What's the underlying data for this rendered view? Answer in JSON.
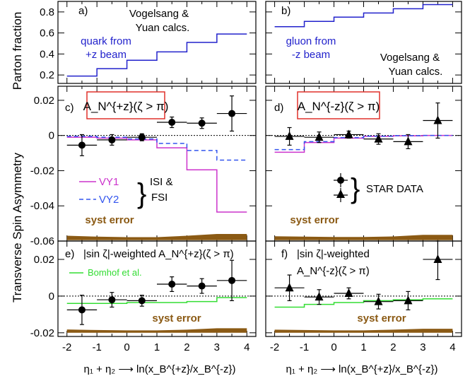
{
  "figure": {
    "ylabel_top": "Parton fraction",
    "ylabel_main": "Transverse Spin Asymmetry",
    "xlabel_left": "η₁ + η₂ ⟶ ln(x_B^{+z}/x_B^{-z})",
    "xlabel_right": "η₁ + η₂ ⟶ ln(x_B^{+z}/x_B^{-z})",
    "x_ticklabels": [
      "-2",
      "-1",
      "0",
      "1",
      "2",
      "3",
      "4"
    ]
  },
  "panels": {
    "a": {
      "tag": "a)",
      "text1": "Vogelsang &",
      "text2": "Yuan calcs.",
      "curve_label1": "quark from",
      "curve_label2": "+z beam"
    },
    "b": {
      "tag": "b)",
      "text1": "Vogelsang &",
      "text2": "Yuan calcs.",
      "curve_label1": "gluon from",
      "curve_label2": "-z beam"
    },
    "c": {
      "tag": "c)",
      "boxed_label": "A_N^{+z}(ζ > π)",
      "legend_vy1": "VY1",
      "legend_vy2": "VY2",
      "legend_isi1": "ISI &",
      "legend_isi2": "FSI",
      "syst_label": "syst error"
    },
    "d": {
      "tag": "d)",
      "boxed_label": "A_N^{-z}(ζ > π)",
      "star_data": "STAR  DATA",
      "syst_label": "syst error"
    },
    "e": {
      "tag": "e)",
      "title": "|sin ζ|-weighted A_N^{+z}(ζ > π)",
      "legend_bomhof": "Bomhof et al.",
      "syst_label": "syst error"
    },
    "f": {
      "tag": "f)",
      "title1": "|sin ζ|-weighted",
      "title2": "A_N^{-z}(ζ > π)",
      "syst_label": "syst error"
    }
  },
  "chart_data": [
    {
      "id": "a",
      "type": "line",
      "title": "",
      "xlim": [
        -2.3,
        4.3
      ],
      "ylim": [
        0.12,
        0.9
      ],
      "yticks": [
        0.2,
        0.4,
        0.6,
        0.8
      ],
      "yticklabels": [
        "0.2",
        "0.4",
        "0.6",
        "0.8"
      ],
      "series": [
        {
          "name": "quark from +z beam",
          "color": "#2222cc",
          "step_edges": [
            -2,
            -1,
            0,
            1,
            2,
            3,
            4
          ],
          "step_values": [
            0.19,
            0.26,
            0.34,
            0.42,
            0.51,
            0.59
          ]
        }
      ]
    },
    {
      "id": "b",
      "type": "line",
      "title": "",
      "xlim": [
        -2.3,
        4.3
      ],
      "ylim": [
        0.12,
        0.9
      ],
      "yticks": [
        0.2,
        0.4,
        0.6,
        0.8
      ],
      "yticklabels": [],
      "series": [
        {
          "name": "gluon from -z beam",
          "color": "#2222cc",
          "step_edges": [
            -2,
            -1,
            0,
            1,
            2,
            3,
            4
          ],
          "step_values": [
            0.66,
            0.71,
            0.75,
            0.79,
            0.83,
            0.87
          ]
        }
      ]
    },
    {
      "id": "c",
      "type": "scatter",
      "xlim": [
        -2.3,
        4.3
      ],
      "ylim": [
        -0.06,
        0.028
      ],
      "yticks": [
        -0.06,
        -0.04,
        -0.02,
        0,
        0.02
      ],
      "yticklabels": [
        "-0.06",
        "-0.04",
        "-0.02",
        "0",
        "0.02"
      ],
      "points": [
        {
          "x": -1.5,
          "y": -0.0055,
          "yerr": 0.006,
          "xerr": 0.5
        },
        {
          "x": -0.5,
          "y": -0.0025,
          "yerr": 0.003,
          "xerr": 0.5
        },
        {
          "x": 0.5,
          "y": -0.001,
          "yerr": 0.002,
          "xerr": 0.5
        },
        {
          "x": 1.5,
          "y": 0.0075,
          "yerr": 0.003,
          "xerr": 0.5
        },
        {
          "x": 2.5,
          "y": 0.007,
          "yerr": 0.003,
          "xerr": 0.5
        },
        {
          "x": 3.5,
          "y": 0.0125,
          "yerr": 0.01,
          "xerr": 0.5
        }
      ],
      "marker": "circle",
      "series": [
        {
          "name": "VY1",
          "color": "#cc33cc",
          "dash": "solid",
          "step_edges": [
            -2,
            -1,
            0,
            1,
            2,
            3,
            4
          ],
          "step_values": [
            -0.001,
            -0.0015,
            -0.0025,
            -0.007,
            -0.0195,
            -0.0435
          ]
        },
        {
          "name": "VY2",
          "color": "#3355ee",
          "dash": "dashed",
          "step_edges": [
            -2,
            -1,
            0,
            1,
            2,
            3,
            4
          ],
          "step_values": [
            -0.0005,
            -0.001,
            -0.002,
            -0.0045,
            -0.0085,
            -0.014
          ]
        }
      ],
      "syst_band": {
        "x": [
          -2,
          -1,
          0,
          1,
          2,
          3,
          4
        ],
        "low": [
          -0.0595,
          -0.0595,
          -0.0595,
          -0.0595,
          -0.0595,
          -0.0595,
          -0.0595
        ],
        "high": [
          -0.057,
          -0.0575,
          -0.0578,
          -0.0578,
          -0.057,
          -0.056,
          -0.056
        ]
      }
    },
    {
      "id": "d",
      "type": "scatter",
      "xlim": [
        -2.3,
        4.3
      ],
      "ylim": [
        -0.06,
        0.028
      ],
      "yticks": [
        -0.06,
        -0.04,
        -0.02,
        0,
        0.02
      ],
      "yticklabels": [],
      "points": [
        {
          "x": -1.5,
          "y": -0.0005,
          "yerr": 0.005,
          "xerr": 0.5
        },
        {
          "x": -0.5,
          "y": -0.001,
          "yerr": 0.003,
          "xerr": 0.5
        },
        {
          "x": 0.5,
          "y": 0.0005,
          "yerr": 0.002,
          "xerr": 0.5
        },
        {
          "x": 1.5,
          "y": -0.002,
          "yerr": 0.003,
          "xerr": 0.5
        },
        {
          "x": 2.5,
          "y": -0.0035,
          "yerr": 0.004,
          "xerr": 0.5
        },
        {
          "x": 3.5,
          "y": 0.0085,
          "yerr": 0.01,
          "xerr": 0.5
        }
      ],
      "marker": "triangle",
      "series": [
        {
          "name": "VY1",
          "color": "#cc33cc",
          "dash": "solid",
          "step_edges": [
            -2,
            -1,
            0,
            1,
            2,
            3,
            4
          ],
          "step_values": [
            -0.0095,
            -0.004,
            -0.0015,
            -0.0005,
            -0.0002,
            0.0
          ]
        },
        {
          "name": "VY2",
          "color": "#3355ee",
          "dash": "dashed",
          "step_edges": [
            -2,
            -1,
            0,
            1,
            2,
            3,
            4
          ],
          "step_values": [
            -0.008,
            -0.0035,
            -0.0012,
            -0.0004,
            -0.0001,
            0.0
          ]
        }
      ],
      "syst_band": {
        "x": [
          -2,
          -1,
          0,
          1,
          2,
          3,
          4
        ],
        "low": [
          -0.0595,
          -0.0595,
          -0.0595,
          -0.0595,
          -0.0595,
          -0.0595,
          -0.0595
        ],
        "high": [
          -0.0573,
          -0.0575,
          -0.0577,
          -0.0577,
          -0.0574,
          -0.0565,
          -0.0565
        ]
      }
    },
    {
      "id": "e",
      "type": "scatter",
      "xlim": [
        -2.3,
        4.3
      ],
      "ylim": [
        -0.022,
        0.03
      ],
      "yticks": [
        -0.02,
        0,
        0.02
      ],
      "yticklabels": [
        "-0.02",
        "0",
        "0.02"
      ],
      "points": [
        {
          "x": -1.5,
          "y": -0.0075,
          "yerr": 0.008,
          "xerr": 0.5
        },
        {
          "x": -0.5,
          "y": -0.002,
          "yerr": 0.004,
          "xerr": 0.5
        },
        {
          "x": 0.5,
          "y": -0.0025,
          "yerr": 0.003,
          "xerr": 0.5
        },
        {
          "x": 1.5,
          "y": 0.0065,
          "yerr": 0.004,
          "xerr": 0.5
        },
        {
          "x": 2.5,
          "y": 0.0055,
          "yerr": 0.004,
          "xerr": 0.5
        },
        {
          "x": 3.5,
          "y": 0.0085,
          "yerr": 0.011,
          "xerr": 0.5
        }
      ],
      "marker": "circle",
      "series": [
        {
          "name": "Bomhof et al.",
          "color": "#33dd33",
          "dash": "solid",
          "step_edges": [
            -2,
            -1,
            0,
            1,
            2,
            3,
            4
          ],
          "step_values": [
            -0.004,
            -0.004,
            -0.0035,
            -0.0035,
            -0.003,
            -0.0008
          ]
        }
      ],
      "syst_band": {
        "x": [
          -2,
          -1,
          0,
          1,
          2,
          3,
          4
        ],
        "low": [
          -0.02,
          -0.02,
          -0.02,
          -0.02,
          -0.02,
          -0.02,
          -0.02
        ],
        "high": [
          -0.0182,
          -0.0185,
          -0.0187,
          -0.0187,
          -0.0183,
          -0.0175,
          -0.0175
        ]
      }
    },
    {
      "id": "f",
      "type": "scatter",
      "xlim": [
        -2.3,
        4.3
      ],
      "ylim": [
        -0.022,
        0.03
      ],
      "yticks": [
        -0.02,
        0,
        0.02
      ],
      "yticklabels": [],
      "points": [
        {
          "x": -1.5,
          "y": 0.0045,
          "yerr": 0.007,
          "xerr": 0.5
        },
        {
          "x": -0.5,
          "y": -0.0005,
          "yerr": 0.004,
          "xerr": 0.5
        },
        {
          "x": 0.5,
          "y": 0.0015,
          "yerr": 0.003,
          "xerr": 0.5
        },
        {
          "x": 1.5,
          "y": -0.003,
          "yerr": 0.004,
          "xerr": 0.5
        },
        {
          "x": 2.5,
          "y": -0.0025,
          "yerr": 0.005,
          "xerr": 0.5
        },
        {
          "x": 3.5,
          "y": 0.02,
          "yerr": 0.011,
          "xerr": 0.5
        }
      ],
      "marker": "triangle",
      "series": [
        {
          "name": "Bomhof et al.",
          "color": "#33dd33",
          "dash": "solid",
          "step_edges": [
            -2,
            -1,
            0,
            1,
            2,
            3,
            4
          ],
          "step_values": [
            -0.006,
            -0.0045,
            -0.0035,
            -0.0025,
            -0.002,
            -0.0015
          ]
        }
      ],
      "syst_band": {
        "x": [
          -2,
          -1,
          0,
          1,
          2,
          3,
          4
        ],
        "low": [
          -0.02,
          -0.02,
          -0.02,
          -0.02,
          -0.02,
          -0.02,
          -0.02
        ],
        "high": [
          -0.0183,
          -0.0185,
          -0.0187,
          -0.0187,
          -0.0183,
          -0.0178,
          -0.0178
        ]
      }
    }
  ]
}
